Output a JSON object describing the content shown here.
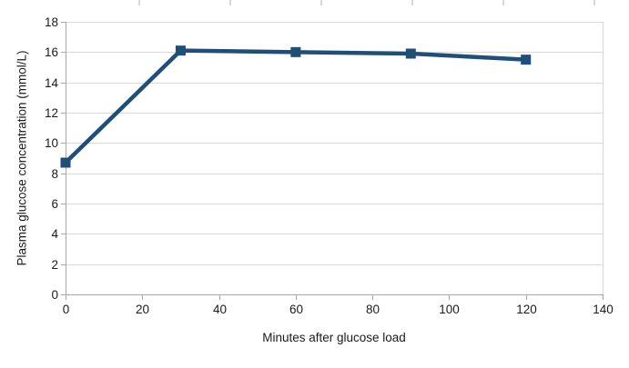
{
  "page": {
    "background": "#ffffff"
  },
  "chart_data": {
    "type": "line",
    "title": "",
    "xlabel": "Minutes after glucose load",
    "ylabel": "Plasma glucose concentration (mmol/L)",
    "x": [
      0,
      30,
      60,
      90,
      120
    ],
    "y": [
      8.7,
      16.1,
      16.0,
      15.9,
      15.5
    ],
    "series": [
      {
        "name": "Plasma glucose concentration",
        "x": [
          0,
          30,
          60,
          90,
          120
        ],
        "values": [
          8.7,
          16.1,
          16.0,
          15.9,
          15.5
        ]
      }
    ],
    "xlim": [
      0,
      140
    ],
    "ylim": [
      0,
      18
    ],
    "xticks": [
      0,
      20,
      40,
      60,
      80,
      100,
      120,
      140
    ],
    "yticks": [
      0,
      2,
      4,
      6,
      8,
      10,
      12,
      14,
      16,
      18
    ],
    "grid": "horizontal",
    "legend": "none",
    "marker": "square",
    "colors": {
      "series": "#1f4e79",
      "gridline": "#d9d9d9",
      "axis": "#a6a6a6",
      "tick": "#a6a6a6",
      "text": "#1a1a1a",
      "plot_right_border": "#d9d9d9",
      "spreadsheet_column_tick": "#b0b0b0"
    }
  }
}
